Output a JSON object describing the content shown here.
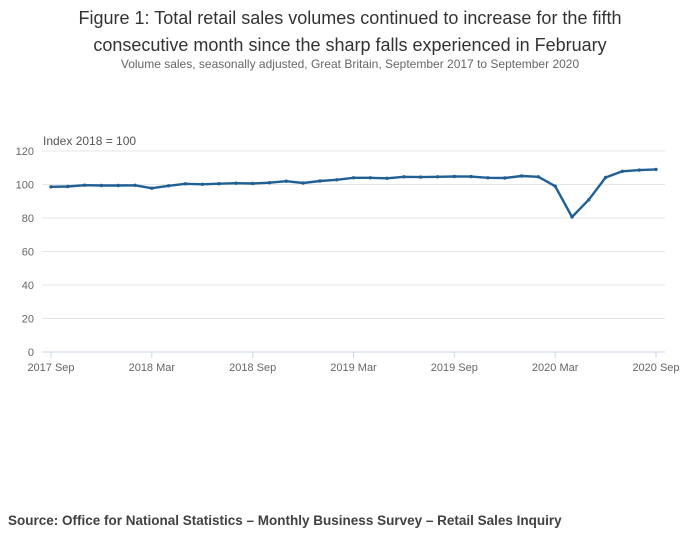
{
  "header": {
    "title": "Figure 1: Total retail sales volumes continued to increase for the fifth consecutive month since the sharp falls experienced in February",
    "subtitle": "Volume sales, seasonally adjusted, Great Britain, September 2017 to September 2020"
  },
  "footer": {
    "source": "Source: Office for National Statistics – Monthly Business Survey – Retail Sales Inquiry"
  },
  "chart_data": {
    "type": "line",
    "title": "Figure 1: Total retail sales volumes continued to increase for the fifth consecutive month since the sharp falls experienced in February",
    "subtitle": "Volume sales, seasonally adjusted, Great Britain, September 2017 to September 2020",
    "axis_note": "Index 2018 = 100",
    "x": [
      "2017 Sep",
      "2017 Oct",
      "2017 Nov",
      "2017 Dec",
      "2018 Jan",
      "2018 Feb",
      "2018 Mar",
      "2018 Apr",
      "2018 May",
      "2018 Jun",
      "2018 Jul",
      "2018 Aug",
      "2018 Sep",
      "2018 Oct",
      "2018 Nov",
      "2018 Dec",
      "2019 Jan",
      "2019 Feb",
      "2019 Mar",
      "2019 Apr",
      "2019 May",
      "2019 Jun",
      "2019 Jul",
      "2019 Aug",
      "2019 Sep",
      "2019 Oct",
      "2019 Nov",
      "2019 Dec",
      "2020 Jan",
      "2020 Feb",
      "2020 Mar",
      "2020 Apr",
      "2020 May",
      "2020 Jun",
      "2020 Jul",
      "2020 Aug",
      "2020 Sep"
    ],
    "series": [
      {
        "name": "Total retail sales volume, seasonally adjusted",
        "values": [
          98.6,
          98.8,
          99.6,
          99.4,
          99.4,
          99.5,
          97.8,
          99.2,
          100.4,
          100.1,
          100.5,
          100.8,
          100.6,
          101.1,
          102.0,
          100.9,
          102.1,
          102.8,
          104.0,
          104.0,
          103.7,
          104.6,
          104.4,
          104.6,
          104.8,
          104.7,
          104.0,
          103.9,
          105.1,
          104.6,
          99.0,
          80.6,
          90.9,
          104.2,
          107.9,
          108.6,
          109.0
        ]
      }
    ],
    "x_tick_labels": [
      "2017 Sep",
      "2018 Mar",
      "2018 Sep",
      "2019 Mar",
      "2019 Sep",
      "2020 Mar",
      "2020 Sep"
    ],
    "x_tick_indices": [
      0,
      6,
      12,
      18,
      24,
      30,
      36
    ],
    "y_ticks": [
      0,
      20,
      40,
      60,
      80,
      100,
      120
    ],
    "ylim": [
      0,
      120
    ],
    "grid": "horizontal",
    "legend": "none",
    "colors": {
      "line": "#206095",
      "gridline": "#e6e6e6",
      "axis": "#ccd6eb",
      "tick_label": "#666666",
      "axis_note": "#555555",
      "title": "#333333",
      "subtitle": "#666666",
      "source": "#414042"
    }
  }
}
